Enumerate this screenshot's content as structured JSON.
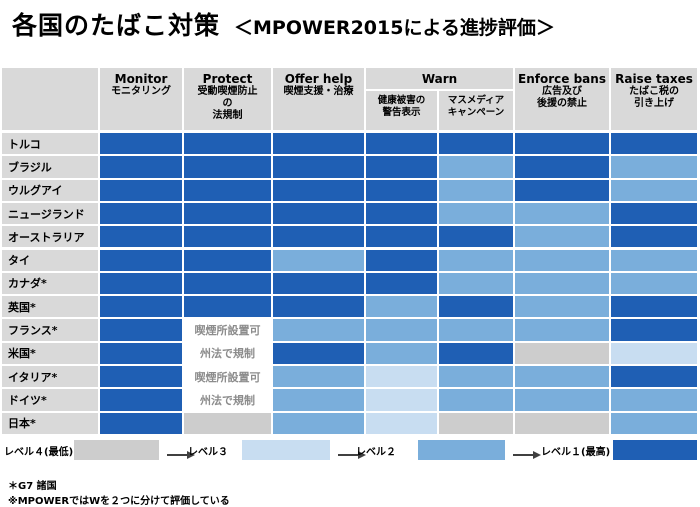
{
  "title": "各国のたばこ対策",
  "subtitle": "＜MPOWER2015による進捗評価＞",
  "colors": {
    "header_bg": "#d9d9d9",
    "country_bg": "#d9d9d9",
    "levels": {
      "1": "#1f5fb4",
      "2": "#7aaedb",
      "3": "#c8ddf1",
      "4": "#cdcdcd"
    }
  },
  "chart_data": {
    "type": "table",
    "columns": [
      {
        "en": "Monitor",
        "jp": "モニタリング"
      },
      {
        "en": "Protect",
        "jp": "受動喫煙防止\nの\n法規制"
      },
      {
        "en": "Offer help",
        "jp": "喫煙支援・治療"
      },
      {
        "en": "Warn",
        "jp": ""
      },
      {
        "en": "Enforce bans",
        "jp": "広告及び\n後援の禁止"
      },
      {
        "en": "Raise taxes",
        "jp": "たばこ税の\n引き上げ"
      }
    ],
    "warn_subcolumns": [
      "健康被害の\n警告表示",
      "マスメディア\nキャンペーン"
    ],
    "countries": [
      "トルコ",
      "ブラジル",
      "ウルグアイ",
      "ニュージランド",
      "オーストラリア",
      "タイ",
      "カナダ*",
      "英国*",
      "フランス*",
      "米国*",
      "イタリア*",
      "ドイツ*",
      "日本*"
    ],
    "levels": [
      [
        1,
        1,
        1,
        1,
        1,
        1,
        1
      ],
      [
        1,
        1,
        1,
        1,
        2,
        1,
        2
      ],
      [
        1,
        1,
        1,
        1,
        2,
        1,
        2
      ],
      [
        1,
        1,
        1,
        1,
        2,
        2,
        1
      ],
      [
        1,
        1,
        1,
        1,
        1,
        2,
        1
      ],
      [
        1,
        1,
        2,
        1,
        2,
        2,
        2
      ],
      [
        1,
        1,
        1,
        1,
        2,
        2,
        2
      ],
      [
        1,
        1,
        1,
        2,
        1,
        2,
        1
      ],
      [
        1,
        0,
        2,
        2,
        2,
        2,
        1
      ],
      [
        1,
        0,
        1,
        2,
        1,
        4,
        3
      ],
      [
        1,
        0,
        2,
        3,
        2,
        2,
        1
      ],
      [
        1,
        0,
        2,
        3,
        2,
        2,
        2
      ],
      [
        1,
        4,
        2,
        3,
        4,
        4,
        2
      ]
    ],
    "cell_notes": {
      "8-1": "喫煙所設置可",
      "9-1": "州法で規制",
      "10-1": "喫煙所設置可",
      "11-1": "州法で規制"
    },
    "legend": [
      {
        "label": "レベル４(最低)",
        "level": 4
      },
      {
        "label": "レベル３",
        "level": 3
      },
      {
        "label": "レベル２",
        "level": 2
      },
      {
        "label": "レベル１(最高)",
        "level": 1
      }
    ]
  },
  "footnotes": [
    "＊G7 諸国",
    "※MPOWERではWを２つに分けて評価している"
  ]
}
